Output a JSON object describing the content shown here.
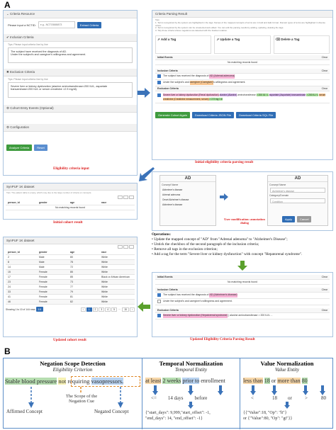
{
  "labels": {
    "panel_a": "A",
    "panel_b": "B"
  },
  "criteria_resource": {
    "title": "Criteria Resource",
    "nctid_label": "Please input a NCTID:",
    "nctid_placeholder": "e.g., NCT03665873",
    "extract_button": "Extract Criteria"
  },
  "inclusion": {
    "title": "Inclusion Criteria",
    "tips": "Tips: Please input criteria line by line",
    "text1": "The subject have received the diagnosis of AD.",
    "text2": "Under the subject's and caregiver's willingness and agreement."
  },
  "exclusion": {
    "title": "Exclusion Criteria",
    "tips": "Tips: Please input criteria line by line",
    "text1": "Severe liver or kidney dysfunction (alanine aminotransferase>200 IU/L, aspartate",
    "text2": "transaminase>200 IU/L or serum creatinine >2.9 mg/dl)."
  },
  "cohort_entry": {
    "title": "Cohort Entry Events (Optional)"
  },
  "configuration": {
    "title": "Configuration"
  },
  "bottom_buttons": {
    "analyze": "Analyze Criteria",
    "reset": "Reset"
  },
  "captions": {
    "eligibility_input": "Eligibility criteria input",
    "initial_parsing": "Initial eligibility criteria parsing result",
    "initial_cohort": "Initial cohort result",
    "user_modification": "User modification: annotation dialog",
    "updated_cohort": "Updated cohort result",
    "updated_parsing": "Updated Eligibility Criteria Parsing Result"
  },
  "parsing_result": {
    "title": "Criteria Parsing Result",
    "tips_label": "Tips:",
    "tip1": "1. Terms recognized by the system are highlighted in the tags. Names of the mapped concepts of terms are in bold and italic format. Domain types of terms are highlighted in diverse colors.",
    "tip2": "2. Terms recognized by the system can be unselected and edited. You can edit the parsing results by adding, updating, deleting the tags.",
    "tip3": "3. Tidy those criteria whose negations are detected with the bracket notation.",
    "add_tag": "Add a Tag",
    "update_tag": "Update a Tag",
    "delete_tag": "Delete a Tag",
    "initial_events": "Initial Events",
    "clear": "Clear",
    "no_records": "No matching records found",
    "inclusion_criteria": "Inclusion Criteria",
    "exclusion_criteria": "Exclusion Criteria",
    "inc_row1": "The subject has received the diagnosis of",
    "inc_row1_tag": "AD (Adrenal adenoma)",
    "inc_row2a": "Under the subject's and",
    "inc_row2_tag": "caregiver (Caregiver)",
    "inc_row2b": "'s willingness and agreement.",
    "exc_tag1": "Severe liver or kidney dysfunction (Renal dysfunction)",
    "exc_tag2": "alanine (Alanine)",
    "exc_text2": "aminotransferase",
    "exc_tag3": "> 200 IU / L",
    "exc_tag4": "aspartate (Aspartate)",
    "exc_tag5": "transaminase",
    "exc_tag6": "> 200 IU / L",
    "exc_tag7": "serum creatinine (Creatinine measurement, serum)",
    "exc_tag8": "> 2.9 mg / dl",
    "btn_generate": "Generate Cohort Again",
    "btn_json": "Download Criteria JSON File",
    "btn_sql": "Download Criteria SQL File"
  },
  "initial_cohort": {
    "title": "SynPUF 1K dataset",
    "tip": "Tips: The patient table is empty, which may due to the large number of criteria or concepts.",
    "columns": [
      "person_id",
      "gender",
      "age",
      "race"
    ],
    "no_records": "No matching records found"
  },
  "annotation_dialog": {
    "left_title": "AD",
    "right_title": "AD",
    "concept_name": "Concept Name",
    "concepts": [
      "Alzheimer's disease",
      "Adrenal adenoma",
      "Onset Alzheimer's disease",
      "Alzheimer's disease"
    ],
    "category_domain": "Category/Domain",
    "condition": "Condition",
    "apply": "Apply",
    "cancel": "Cancel"
  },
  "operations": {
    "title": "Operations:",
    "op1": "Update the mapped concept of \"AD\" from \"Adrenal adenoma\" to \"Alzheimer's Disease\";",
    "op2": "Untick the checkbox of the second paragraph of the inclusion criteria;",
    "op3": "Remove all tags in the exclusion criterion;",
    "op4": "Add a tag for the term \"Severe liver or kidney dysfunction\" with concept \"Hepatorenal syndrome\"."
  },
  "updated_cohort": {
    "title": "SynPUF 1K dataset",
    "columns": [
      "person_id",
      "gender",
      "age",
      "race"
    ],
    "rows": [
      [
        "2",
        "Male",
        "80",
        "White"
      ],
      [
        "8",
        "Male",
        "78",
        "White"
      ],
      [
        "14",
        "Male",
        "72",
        "White"
      ],
      [
        "15",
        "Female",
        "85",
        "White"
      ],
      [
        "17",
        "Female",
        "85",
        "Black or African American"
      ],
      [
        "23",
        "Female",
        "73",
        "White"
      ],
      [
        "24",
        "Female",
        "77",
        "White"
      ],
      [
        "33",
        "Female",
        "79",
        "White"
      ],
      [
        "41",
        "Female",
        "81",
        "White"
      ],
      [
        "46",
        "Female",
        "82",
        "White"
      ]
    ],
    "footer": "Showing 1 to 10 of 144 rows",
    "per_page": "10",
    "pages": [
      "1",
      "2",
      "3",
      "4",
      "5",
      "15"
    ]
  },
  "updated_parsing": {
    "initial_events": "Initial Events",
    "clear": "Clear",
    "no_records": "No matching records found",
    "inclusion_criteria": "Inclusion Criteria",
    "inc_row1": "The subject has received the diagnosis of",
    "inc_row1_tag": "AD (Alzheimer's disease)",
    "inc_row2": "Under the subject's and caregiver's willingness and agreement.",
    "exclusion_criteria": "Exclusion Criteria",
    "exc_tag": "Severe liver or kidney dysfunction (Hepatorenal syndrome)",
    "exc_text": "( alanine aminotransferase > 200 IU/L ..."
  },
  "panel_b": {
    "neg_title": "Negation Scope Detection",
    "neg_sub": "Eligibility Criterion",
    "neg_w1": "Stable blood pressure",
    "neg_w2": "not",
    "neg_w3": "requiring",
    "neg_w4": "vasopressors.",
    "neg_scope": "The Scope of the Negation Cue",
    "neg_affirmed": "Affirmed Concept",
    "neg_negated": "Negated Concept",
    "temp_title": "Temporal Normalization",
    "temp_sub": "Temporal Entity",
    "temp_w1": "at least",
    "temp_w2": "2 weeks",
    "temp_w3": "prior to",
    "temp_w4": "enrollment",
    "temp_le": "<=",
    "temp_days": "14 days",
    "temp_before": "before",
    "temp_json1": "{\"start_days\": 9,999,\"start_offset\": -1,",
    "temp_json2": "\"end_days\": 14, \"end_offset\": -1}",
    "val_title": "Value Normalization",
    "val_sub": "Value Entity",
    "val_w1": "less than",
    "val_w2": "18",
    "val_w3": "or",
    "val_w4": "more than",
    "val_w5": "80",
    "val_lt": "<",
    "val_18": "18",
    "val_or": "or",
    "val_gt": ">",
    "val_80": "80",
    "val_json1": "{{\"Value\":18, \"Op\": \"lt\"}",
    "val_json2": "or {\"Value\":80, \"Op\": \"gt\"}}"
  }
}
